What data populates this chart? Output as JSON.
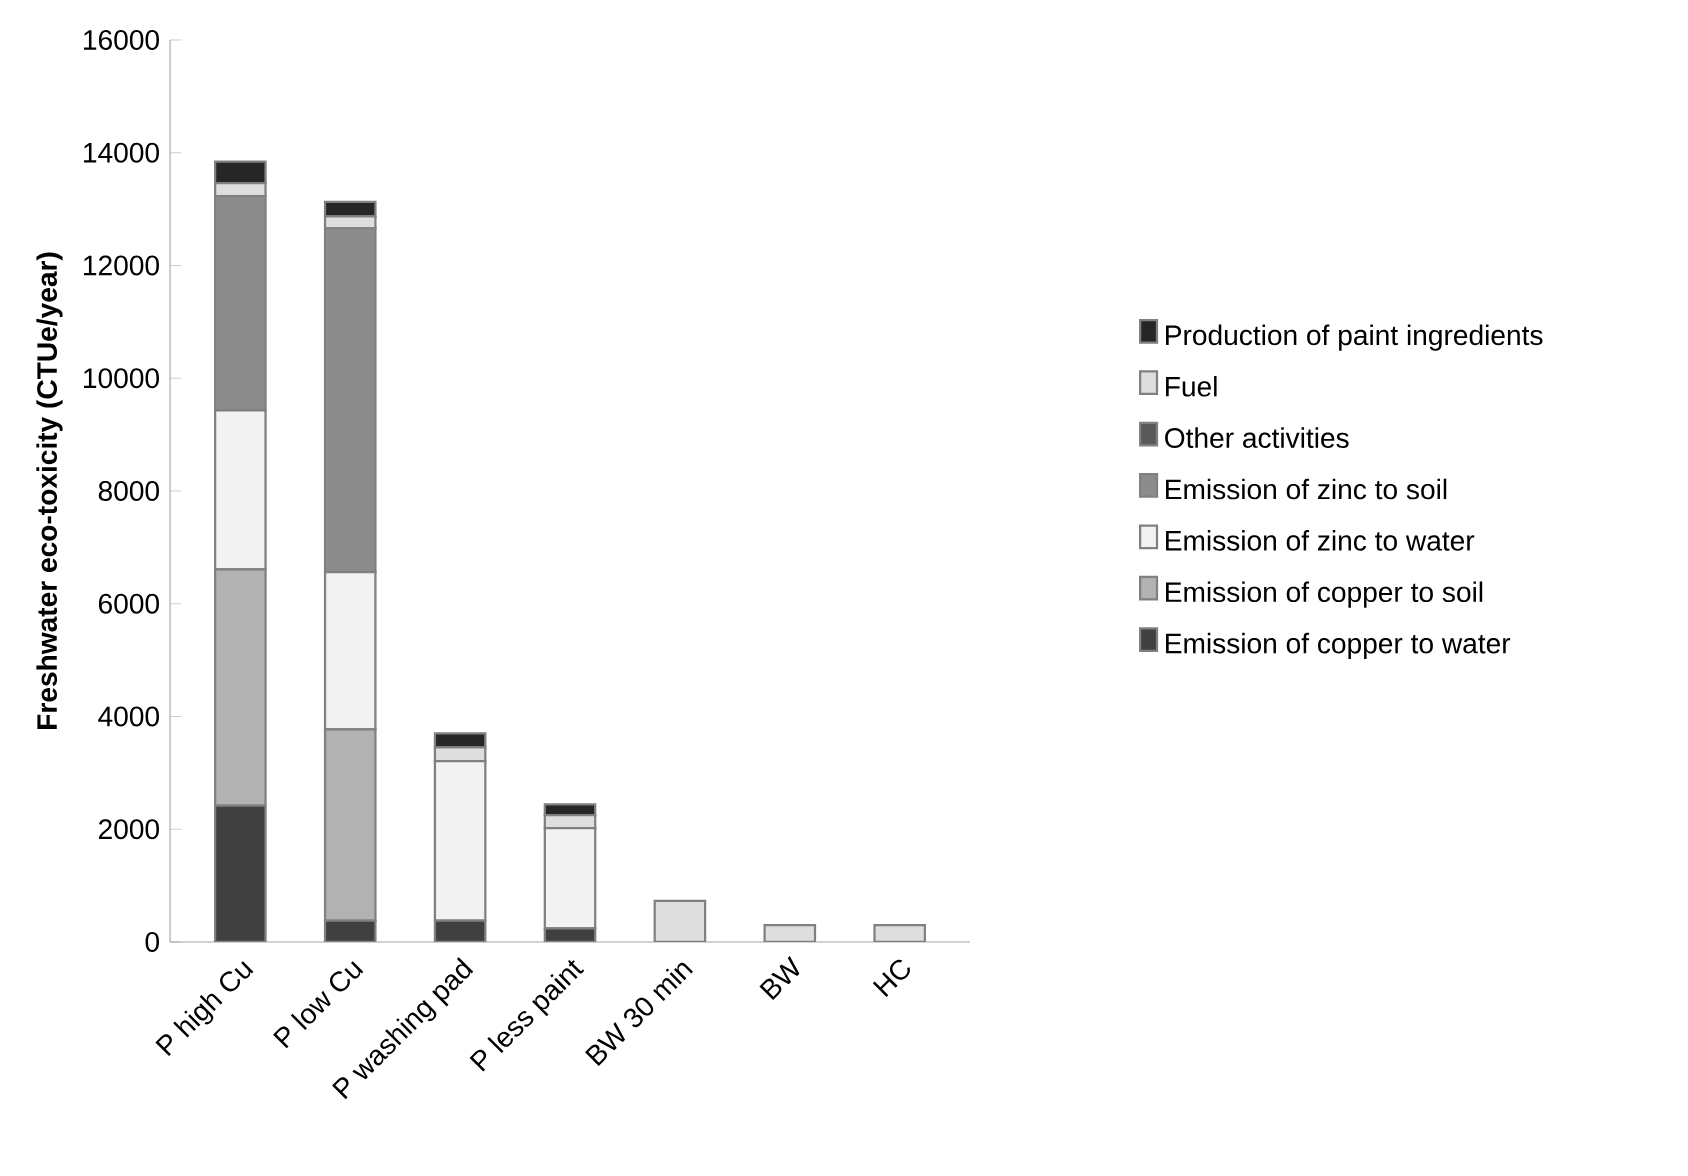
{
  "chart_data": {
    "type": "bar",
    "stacked": true,
    "ylabel": "Freshwater eco-toxicity (CTUe/year)",
    "categories": [
      "P high Cu",
      "P low Cu",
      "P washing pad",
      "P less paint",
      "BW 30 min",
      "BW",
      "HC"
    ],
    "series": [
      {
        "name": "Emission of copper to water",
        "color": "#404040",
        "values": [
          2420,
          380,
          380,
          240,
          0,
          0,
          0
        ]
      },
      {
        "name": "Emission of copper to soil",
        "color": "#b2b2b2",
        "values": [
          4190,
          3390,
          0,
          0,
          0,
          0,
          0
        ]
      },
      {
        "name": "Emission of zinc to water",
        "color": "#f2f2f2",
        "values": [
          2820,
          2790,
          2830,
          1780,
          0,
          0,
          0
        ]
      },
      {
        "name": "Emission of zinc to soil",
        "color": "#8c8c8c",
        "values": [
          3800,
          6100,
          0,
          0,
          0,
          0,
          0
        ]
      },
      {
        "name": "Other activities",
        "color": "#595959",
        "values": [
          0,
          0,
          0,
          0,
          0,
          0,
          0
        ]
      },
      {
        "name": "Fuel",
        "color": "#dedede",
        "values": [
          230,
          210,
          240,
          230,
          730,
          300,
          300
        ]
      },
      {
        "name": "Production of paint ingredients",
        "color": "#262626",
        "values": [
          380,
          260,
          250,
          190,
          0,
          0,
          0
        ]
      }
    ],
    "ylim": [
      0,
      16000
    ],
    "yticks": [
      0,
      2000,
      4000,
      6000,
      8000,
      10000,
      12000,
      14000,
      16000
    ],
    "legend": "right",
    "grid": false
  }
}
